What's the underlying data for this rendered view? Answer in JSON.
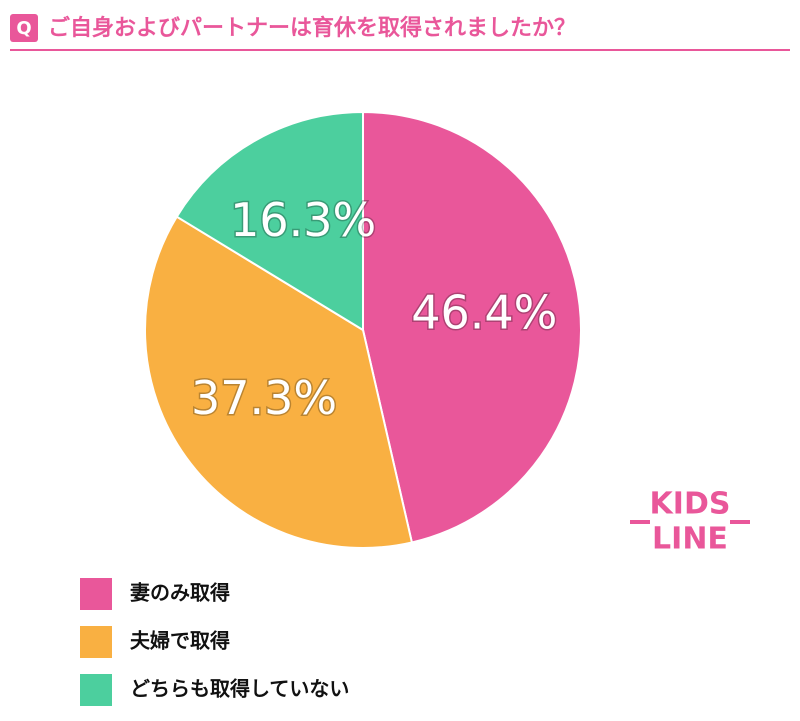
{
  "header": {
    "badge": "Q"
  },
  "chart_data": {
    "type": "pie",
    "title": "ご自身およびパートナーは育休を取得されましたか？",
    "categories": [
      "妻のみ取得",
      "夫婦で取得",
      "どちらも取得していない"
    ],
    "values": [
      46.4,
      37.3,
      16.3
    ],
    "value_labels": [
      "46.4%",
      "37.3%",
      "16.3%"
    ],
    "colors": [
      "#e9579a",
      "#f9b042",
      "#4ccf9e"
    ]
  },
  "logo": [
    "KIDS",
    "LINE"
  ]
}
